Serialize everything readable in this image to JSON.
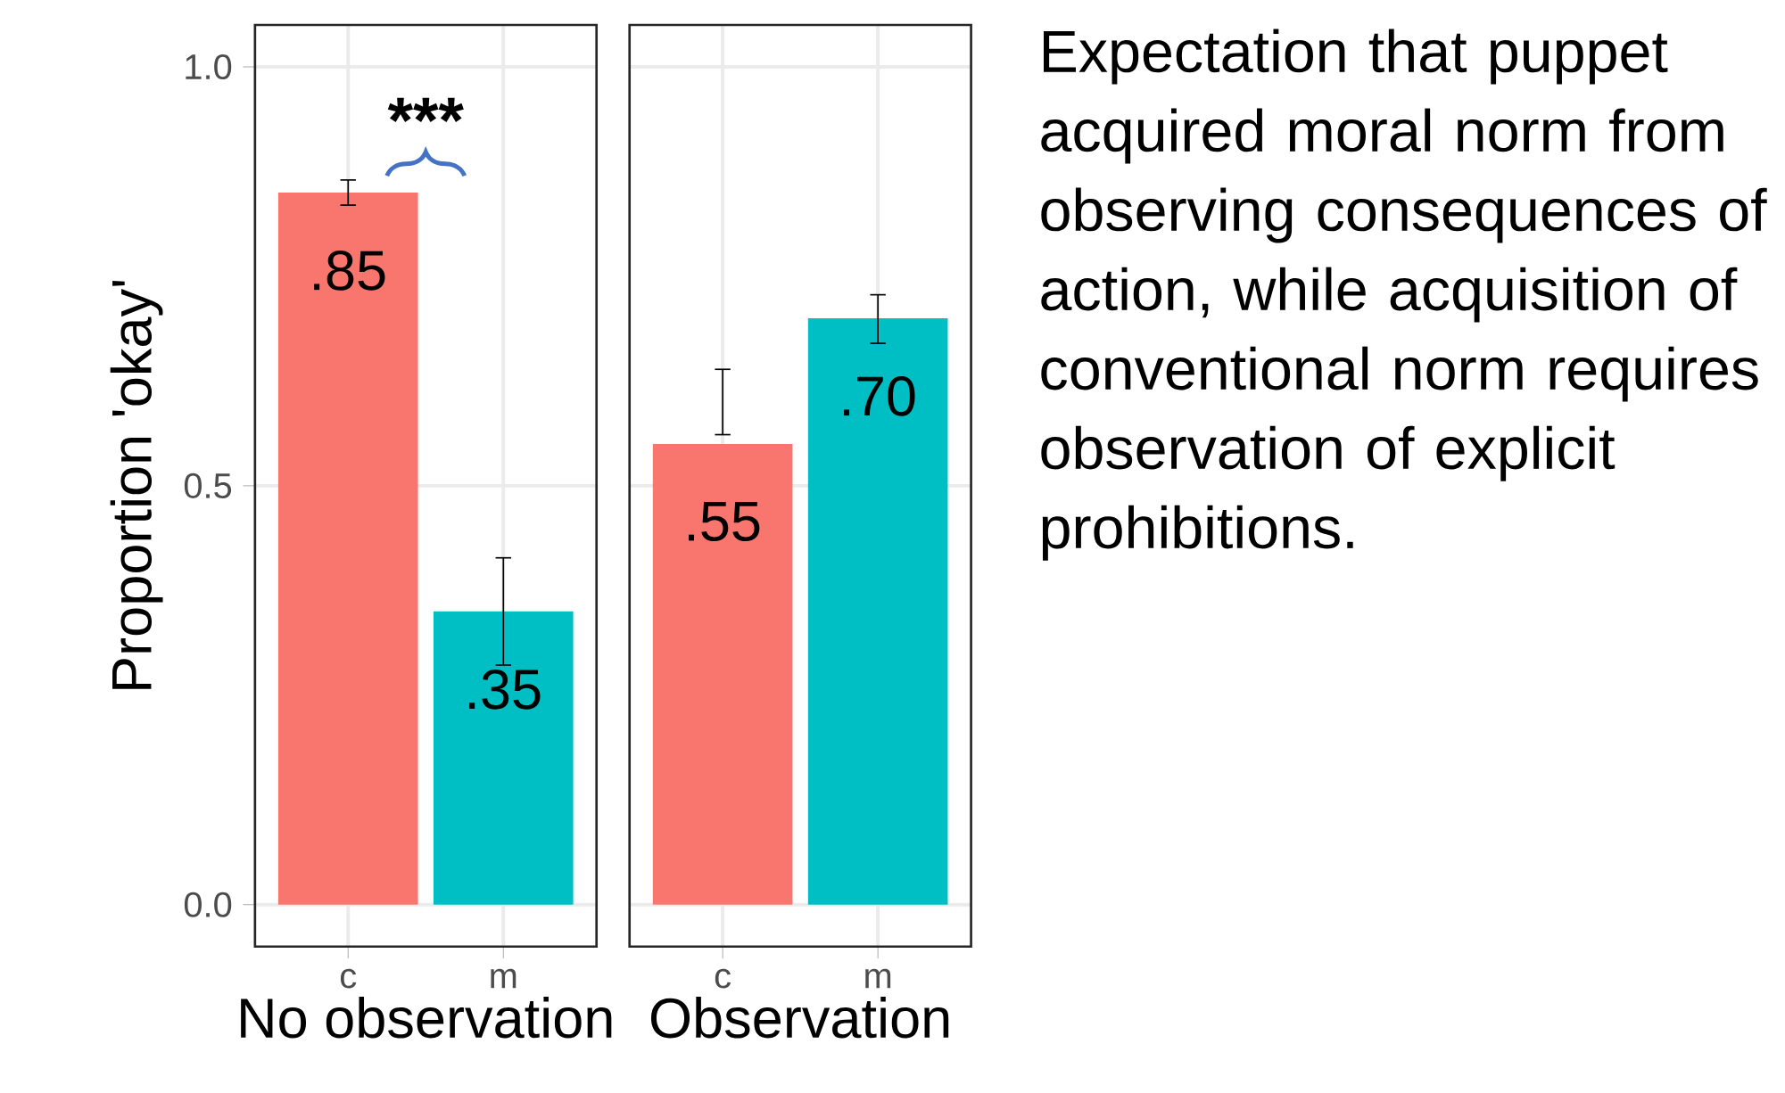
{
  "chart_data": [
    {
      "type": "bar",
      "categories": [
        "c",
        "m"
      ],
      "values": [
        0.85,
        0.35
      ],
      "colors": [
        "#f8766d",
        "#00bfc4"
      ],
      "errors": [
        [
          0.835,
          0.865
        ],
        [
          0.286,
          0.414
        ]
      ],
      "value_labels": [
        ".85",
        ".35"
      ],
      "xlabel": "No observation",
      "ylabel": "Proportion 'okay'",
      "ylim": [
        -0.05,
        1.05
      ],
      "yticks": [
        {
          "value": 0,
          "label": "0.0"
        },
        {
          "value": 0.5,
          "label": "0.5"
        },
        {
          "value": 1,
          "label": "1.0"
        }
      ],
      "grid": true,
      "annotations": [
        "***"
      ]
    },
    {
      "type": "bar",
      "categories": [
        "c",
        "m"
      ],
      "values": [
        0.55,
        0.7
      ],
      "colors": [
        "#f8766d",
        "#00bfc4"
      ],
      "errors": [
        [
          0.561,
          0.639
        ],
        [
          0.67,
          0.728
        ]
      ],
      "value_labels": [
        ".55",
        ".70"
      ],
      "xlabel": "Observation",
      "ylim": [
        -0.05,
        1.05
      ],
      "yticks": [
        {
          "value": 0,
          "label": null
        },
        {
          "value": 0.5,
          "label": null
        },
        {
          "value": 1,
          "label": null
        }
      ],
      "grid": true,
      "tick_labels": "x"
    },
    {
      "type": "other",
      "annotations": [
        "Expectation that puppet acquired moral norm from observing consequences of action, while acquisition of conventional norm requires observation of explicit prohibitions."
      ]
    }
  ]
}
